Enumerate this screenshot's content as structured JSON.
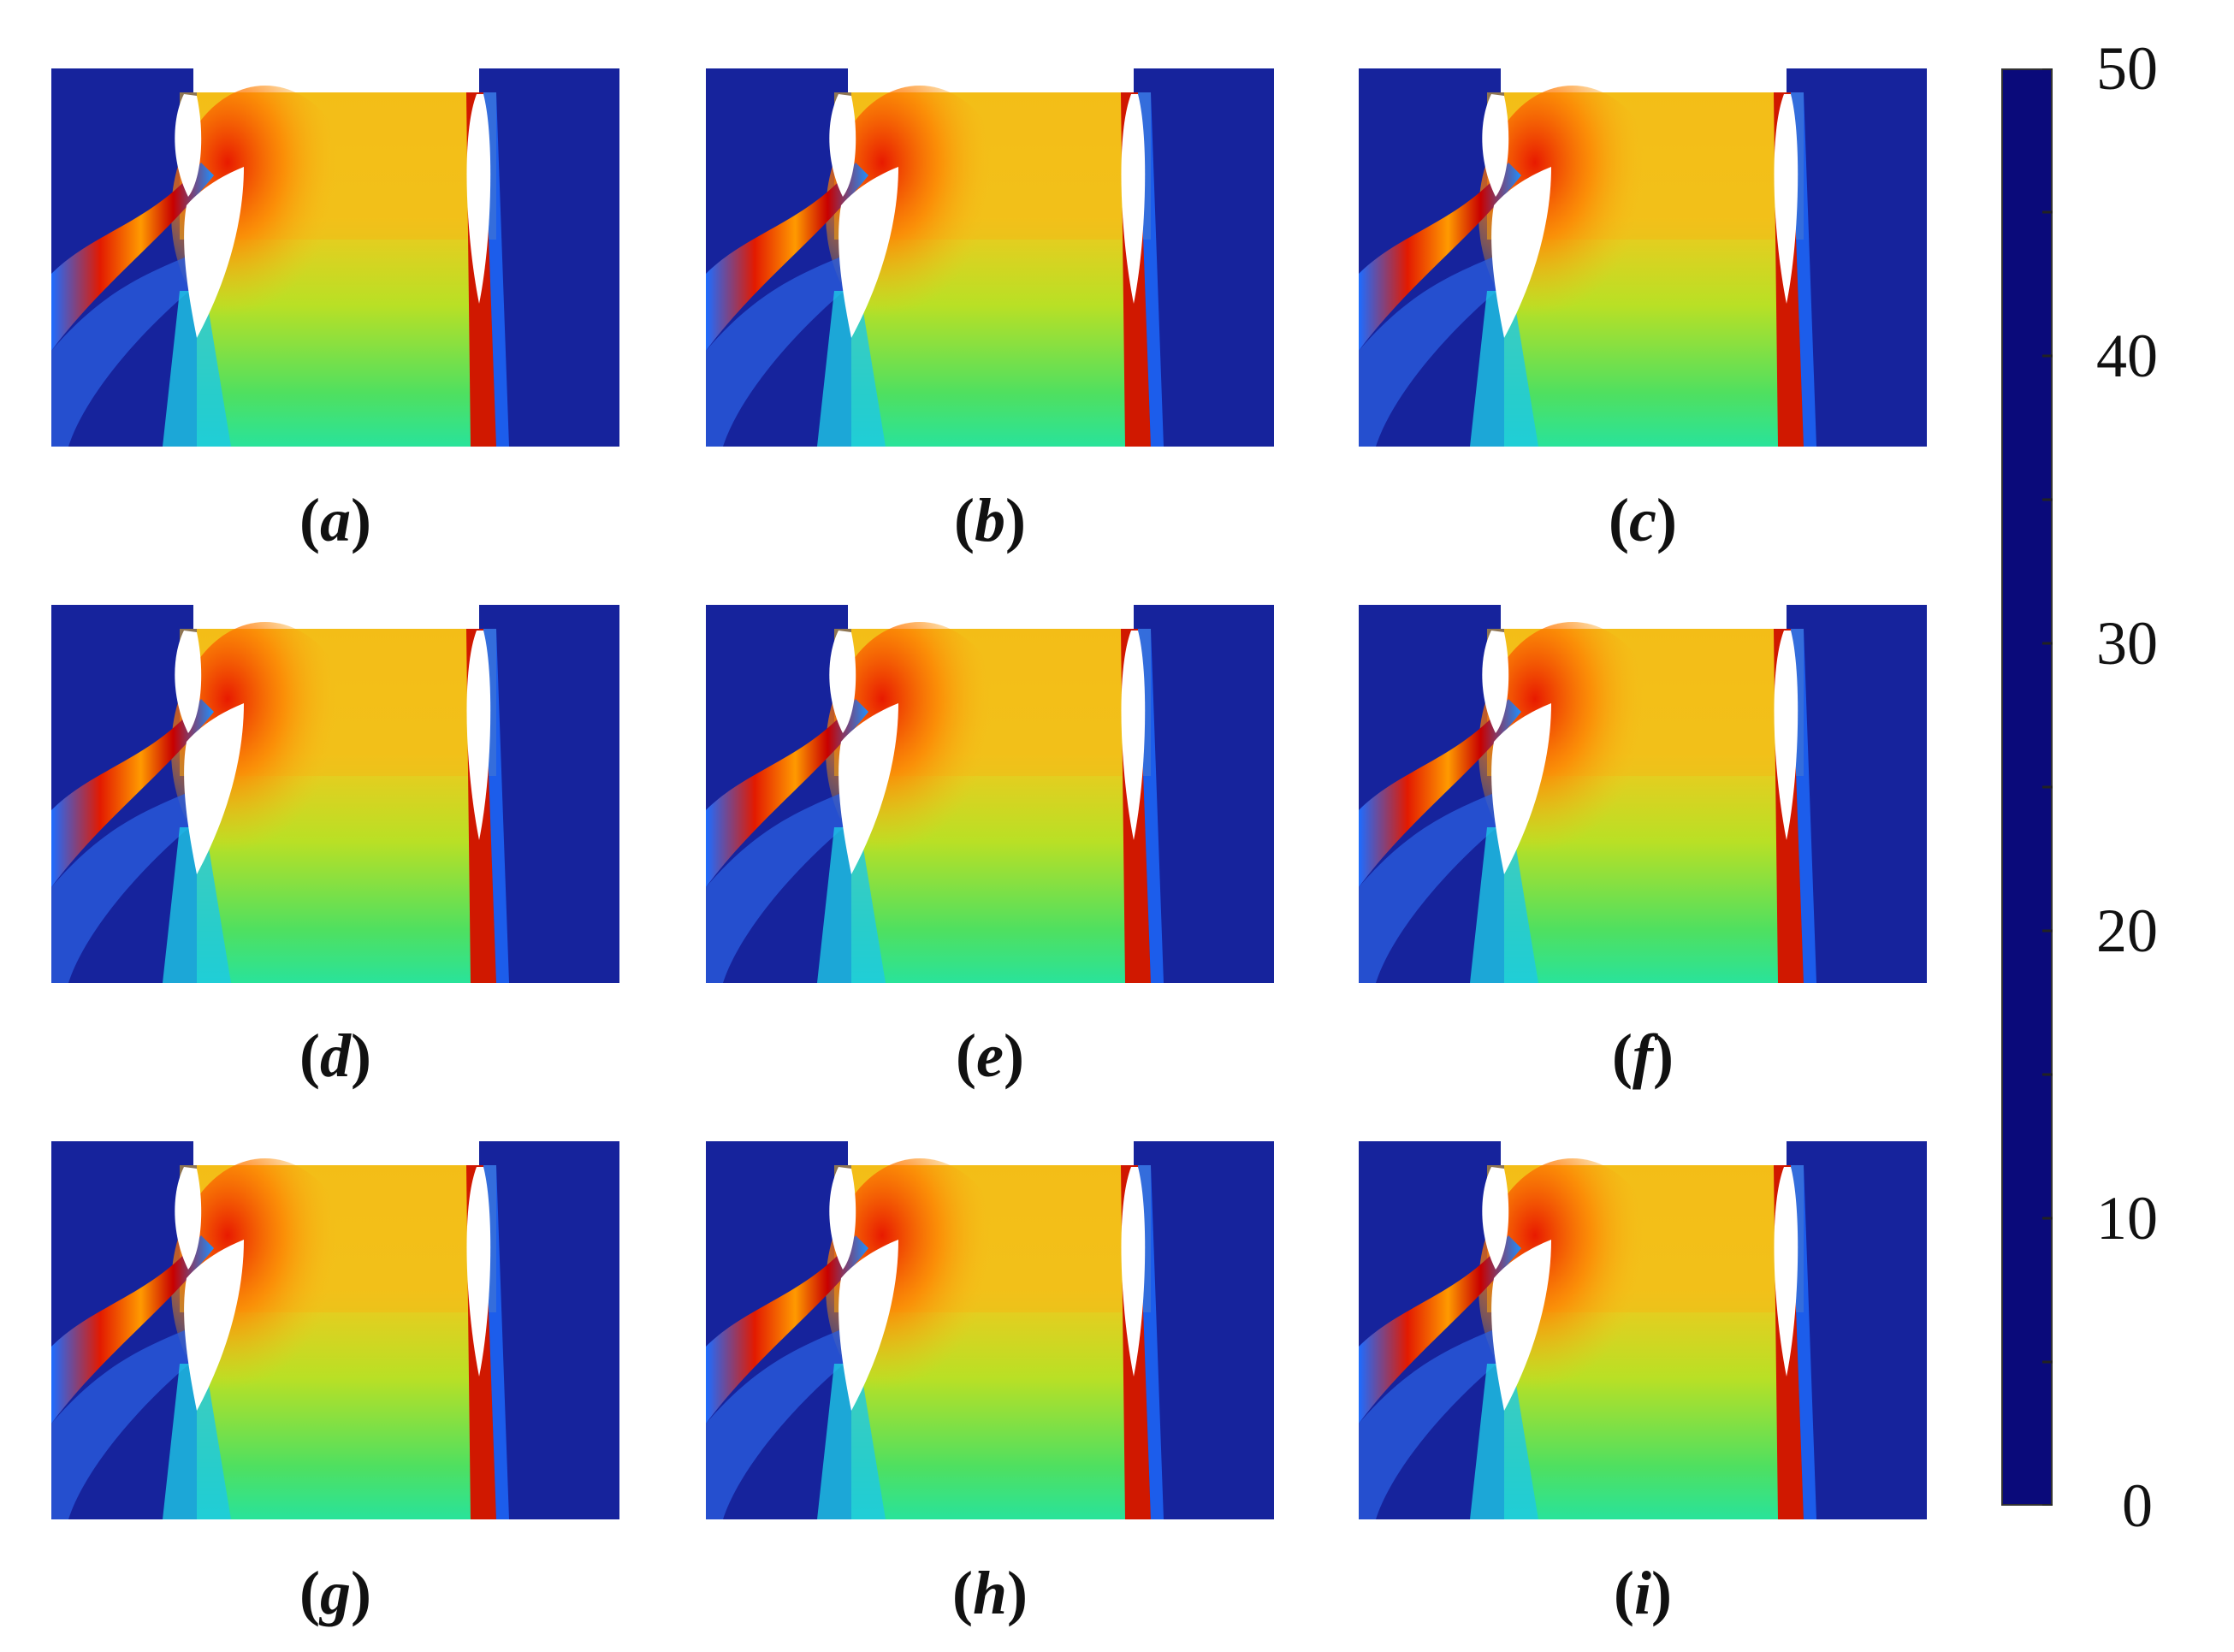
{
  "panels": [
    {
      "label": "a"
    },
    {
      "label": "b"
    },
    {
      "label": "c"
    },
    {
      "label": "d"
    },
    {
      "label": "e"
    },
    {
      "label": "f"
    },
    {
      "label": "g"
    },
    {
      "label": "h"
    },
    {
      "label": "i"
    }
  ],
  "colorbar": {
    "min": 0,
    "max": 50,
    "tick_labels": [
      "50",
      "40",
      "30",
      "20",
      "10",
      "0"
    ],
    "colormap": [
      "#0a0a7a",
      "#1a2fd6",
      "#1e90ff",
      "#00e6e6",
      "#20e67a",
      "#7ee020",
      "#f0e000",
      "#ff8c00",
      "#e60000",
      "#7a0000"
    ]
  }
}
